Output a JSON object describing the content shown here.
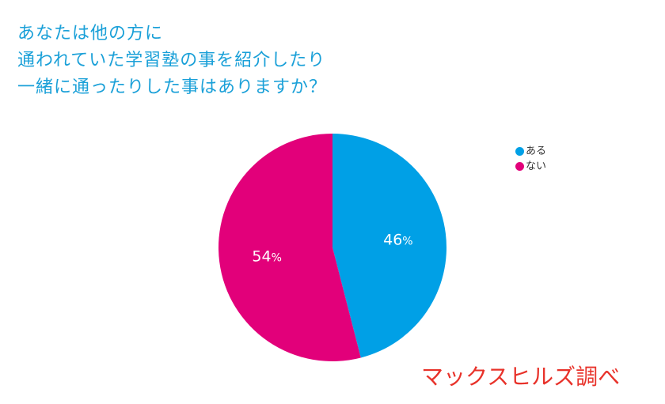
{
  "title_lines": [
    "あなたは他の方に",
    "通われていた学習塾の事を紹介したり",
    "一緒に通ったりした事はありますか？"
  ],
  "source": "マックスヒルズ調べ",
  "chart_data": {
    "type": "pie",
    "title": "あなたは他の方に通われていた学習塾の事を紹介したり一緒に通ったりした事はありますか？",
    "categories": [
      "ある",
      "ない"
    ],
    "values": [
      46,
      54
    ],
    "unit": "%",
    "labels": [
      "46",
      "54"
    ],
    "colors": [
      "#00a0e6",
      "#e2007a"
    ],
    "legend_placement": "top-right"
  },
  "legend": [
    {
      "label": "ある",
      "color": "#00a0e6"
    },
    {
      "label": "ない",
      "color": "#e2007a"
    }
  ]
}
